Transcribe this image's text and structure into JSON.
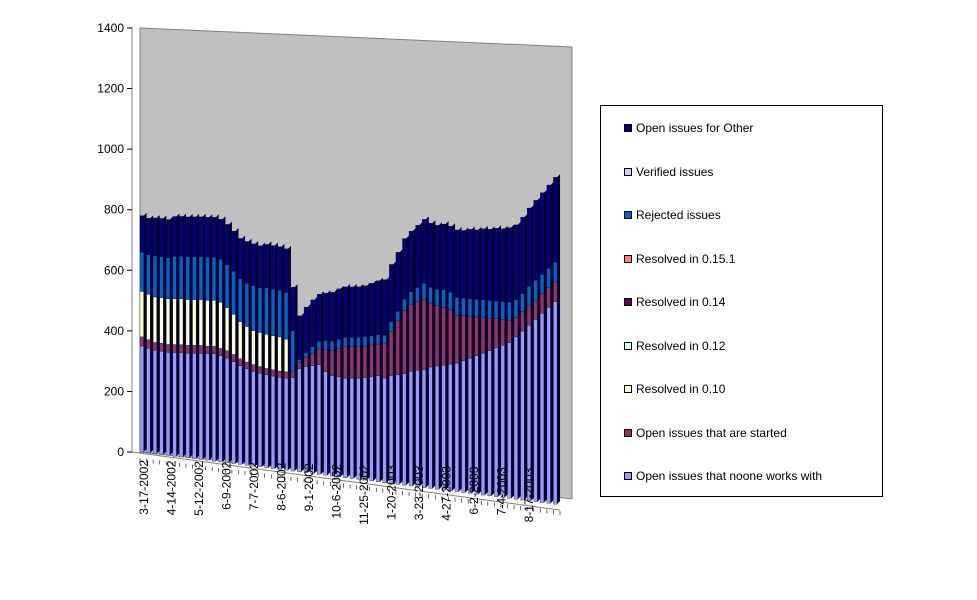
{
  "chart_data": {
    "type": "bar",
    "stacked": true,
    "three_d": true,
    "ylim": [
      0,
      1400
    ],
    "y_ticks": [
      0,
      200,
      400,
      600,
      800,
      1000,
      1200,
      1400
    ],
    "x_tick_labels": [
      "3-17-2002",
      "4-14-2002",
      "5-12-2002",
      "6-9-2002",
      "7-7-2002",
      "8-6-2002",
      "9-1-2002",
      "10-6-2002",
      "11-25-2002",
      "1-20-2003",
      "3-23-2003",
      "4-27-2003",
      "6-2-2003",
      "7-4-2003",
      "8-17-2003"
    ],
    "legend_position": "right",
    "series": [
      {
        "name": "Open issues that noone works with",
        "color": "#9999ff",
        "values": [
          350,
          345,
          340,
          340,
          338,
          340,
          342,
          342,
          344,
          346,
          348,
          350,
          345,
          340,
          330,
          320,
          312,
          306,
          302,
          300,
          298,
          296,
          296,
          300,
          330,
          340,
          345,
          350,
          330,
          320,
          318,
          316,
          318,
          320,
          325,
          330,
          335,
          330,
          340,
          345,
          350,
          360,
          365,
          370,
          380,
          385,
          390,
          395,
          400,
          410,
          420,
          430,
          440,
          450,
          460,
          470,
          480,
          500,
          520,
          540,
          560,
          580,
          600,
          620
        ]
      },
      {
        "name": "Open issues that are started",
        "color": "#993366",
        "values": [
          30,
          28,
          26,
          26,
          26,
          26,
          26,
          26,
          26,
          26,
          24,
          24,
          24,
          24,
          24,
          22,
          22,
          22,
          22,
          20,
          20,
          20,
          20,
          20,
          20,
          30,
          40,
          50,
          70,
          80,
          90,
          100,
          100,
          100,
          100,
          100,
          100,
          110,
          140,
          170,
          200,
          210,
          215,
          220,
          200,
          190,
          180,
          170,
          150,
          140,
          130,
          120,
          110,
          100,
          90,
          80,
          70,
          60,
          60,
          60,
          60,
          60,
          60,
          60
        ]
      },
      {
        "name": "Resolved in 0.10",
        "color": "#ffffcc",
        "values": [
          150,
          150,
          150,
          150,
          150,
          150,
          150,
          150,
          150,
          150,
          150,
          150,
          150,
          140,
          130,
          120,
          115,
          110,
          110,
          110,
          110,
          110,
          105,
          0,
          0,
          0,
          0,
          0,
          0,
          0,
          0,
          0,
          0,
          0,
          0,
          0,
          0,
          0,
          0,
          0,
          0,
          0,
          0,
          0,
          0,
          0,
          0,
          0,
          0,
          0,
          0,
          0,
          0,
          0,
          0,
          0,
          0,
          0,
          0,
          0,
          0,
          0,
          0,
          0
        ]
      },
      {
        "name": "Resolved in 0.12",
        "color": "#ccffff",
        "values": [
          0,
          0,
          0,
          0,
          0,
          0,
          0,
          0,
          0,
          0,
          0,
          0,
          0,
          0,
          0,
          0,
          0,
          0,
          0,
          0,
          0,
          0,
          0,
          0,
          0,
          0,
          0,
          0,
          0,
          0,
          0,
          0,
          0,
          0,
          0,
          0,
          0,
          0,
          0,
          0,
          0,
          0,
          0,
          0,
          0,
          0,
          0,
          0,
          0,
          0,
          0,
          0,
          0,
          0,
          0,
          0,
          0,
          0,
          0,
          0,
          0,
          0,
          0,
          0
        ]
      },
      {
        "name": "Resolved in 0.14",
        "color": "#660066",
        "values": [
          0,
          0,
          0,
          0,
          0,
          0,
          0,
          0,
          0,
          0,
          0,
          0,
          0,
          0,
          0,
          0,
          0,
          0,
          0,
          0,
          0,
          0,
          0,
          0,
          0,
          0,
          0,
          0,
          0,
          0,
          0,
          0,
          0,
          0,
          0,
          0,
          0,
          0,
          0,
          0,
          0,
          0,
          0,
          0,
          0,
          0,
          0,
          0,
          0,
          0,
          0,
          0,
          0,
          0,
          0,
          0,
          0,
          0,
          0,
          0,
          0,
          0,
          0,
          0
        ]
      },
      {
        "name": "Resolved in 0.15.1",
        "color": "#ff8080",
        "values": [
          0,
          0,
          0,
          0,
          0,
          0,
          0,
          0,
          0,
          0,
          0,
          0,
          0,
          0,
          0,
          0,
          0,
          0,
          0,
          0,
          0,
          0,
          0,
          0,
          0,
          0,
          0,
          0,
          0,
          0,
          0,
          0,
          0,
          0,
          0,
          0,
          0,
          0,
          0,
          0,
          0,
          0,
          0,
          0,
          0,
          0,
          0,
          0,
          0,
          0,
          0,
          0,
          0,
          0,
          0,
          0,
          0,
          0,
          0,
          0,
          0,
          0,
          0,
          0
        ]
      },
      {
        "name": "Rejected issues",
        "color": "#0066cc",
        "values": [
          130,
          130,
          135,
          135,
          135,
          140,
          140,
          140,
          140,
          140,
          140,
          140,
          140,
          140,
          140,
          140,
          140,
          145,
          145,
          150,
          150,
          150,
          150,
          130,
          10,
          15,
          20,
          25,
          30,
          30,
          30,
          30,
          30,
          30,
          30,
          30,
          30,
          25,
          30,
          30,
          35,
          40,
          45,
          50,
          50,
          50,
          55,
          55,
          55,
          55,
          55,
          55,
          55,
          55,
          55,
          55,
          55,
          55,
          55,
          60,
          60,
          60,
          60,
          60
        ]
      },
      {
        "name": "Verified issues",
        "color": "#ccccff",
        "values": [
          0,
          0,
          0,
          0,
          0,
          0,
          0,
          0,
          0,
          0,
          0,
          0,
          0,
          0,
          0,
          0,
          0,
          0,
          0,
          0,
          0,
          0,
          0,
          0,
          0,
          0,
          0,
          0,
          0,
          0,
          0,
          0,
          0,
          0,
          0,
          0,
          0,
          0,
          0,
          0,
          0,
          0,
          0,
          0,
          0,
          0,
          0,
          0,
          0,
          0,
          0,
          0,
          0,
          0,
          0,
          0,
          0,
          0,
          0,
          0,
          0,
          0,
          0,
          0
        ]
      },
      {
        "name": "Open issues for Other",
        "color": "#000080",
        "values": [
          120,
          120,
          125,
          125,
          125,
          130,
          130,
          130,
          130,
          130,
          130,
          130,
          130,
          130,
          130,
          130,
          135,
          135,
          135,
          140,
          140,
          140,
          140,
          140,
          140,
          145,
          150,
          150,
          150,
          155,
          160,
          160,
          160,
          160,
          160,
          165,
          170,
          175,
          180,
          185,
          190,
          190,
          195,
          200,
          200,
          200,
          205,
          205,
          210,
          210,
          215,
          215,
          220,
          220,
          225,
          225,
          230,
          230,
          235,
          240,
          245,
          250,
          255,
          260
        ]
      }
    ]
  },
  "legend": {
    "items": [
      {
        "label": "Open issues for Other",
        "color": "#000080"
      },
      {
        "label": "Verified issues",
        "color": "#ccccff"
      },
      {
        "label": "Rejected issues",
        "color": "#0066cc"
      },
      {
        "label": "Resolved in 0.15.1",
        "color": "#ff8080"
      },
      {
        "label": "Resolved in 0.14",
        "color": "#660066"
      },
      {
        "label": "Resolved in 0.12",
        "color": "#ccffff"
      },
      {
        "label": "Resolved in 0.10",
        "color": "#ffffcc"
      },
      {
        "label": "Open issues that are started",
        "color": "#993366"
      },
      {
        "label": "Open issues that noone works with",
        "color": "#9999ff"
      }
    ]
  }
}
